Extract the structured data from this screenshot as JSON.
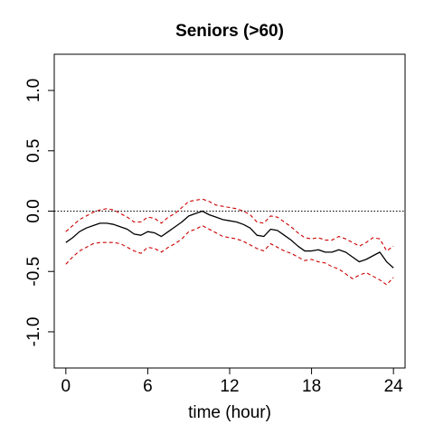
{
  "chart_data": {
    "type": "line",
    "title": "Seniors (>60)",
    "xlabel": "time (hour)",
    "ylabel": "",
    "xlim": [
      -0.85,
      24.85
    ],
    "ylim": [
      -1.3,
      1.3
    ],
    "xticks": [
      0,
      6,
      12,
      18,
      24
    ],
    "xtick_labels": [
      "0",
      "6",
      "12",
      "18",
      "24"
    ],
    "yticks": [
      -1.0,
      -0.5,
      0.0,
      0.5,
      1.0
    ],
    "ytick_labels": [
      "-1.0",
      "-0.5",
      "0.0",
      "0.5",
      "1.0"
    ],
    "reference_line": {
      "y": 0.0,
      "style": "dotted",
      "color": "#000000"
    },
    "grid": false,
    "legend": "none",
    "series": [
      {
        "role": "estimate",
        "color": "#000000",
        "style": "solid",
        "x": [
          0,
          0.5,
          1,
          1.5,
          2,
          2.5,
          3,
          3.5,
          4,
          4.5,
          5,
          5.5,
          6,
          6.5,
          7,
          7.5,
          8,
          8.5,
          9,
          9.5,
          10,
          10.5,
          11,
          11.5,
          12,
          12.5,
          13,
          13.5,
          14,
          14.5,
          15,
          15.5,
          16,
          16.5,
          17,
          17.5,
          18,
          18.5,
          19,
          19.5,
          20,
          20.5,
          21,
          21.5,
          22,
          22.5,
          23,
          23.5,
          24
        ],
        "y": [
          -0.26,
          -0.22,
          -0.17,
          -0.14,
          -0.12,
          -0.1,
          -0.1,
          -0.11,
          -0.13,
          -0.15,
          -0.19,
          -0.2,
          -0.17,
          -0.18,
          -0.21,
          -0.17,
          -0.13,
          -0.09,
          -0.04,
          -0.02,
          0.0,
          -0.03,
          -0.05,
          -0.07,
          -0.08,
          -0.09,
          -0.11,
          -0.14,
          -0.2,
          -0.21,
          -0.15,
          -0.16,
          -0.2,
          -0.24,
          -0.29,
          -0.33,
          -0.33,
          -0.32,
          -0.34,
          -0.34,
          -0.32,
          -0.34,
          -0.38,
          -0.42,
          -0.4,
          -0.37,
          -0.34,
          -0.42,
          -0.47
        ]
      },
      {
        "role": "upper-bound",
        "color": "#cc0000",
        "style": "dashed",
        "x": [
          0,
          0.5,
          1,
          1.5,
          2,
          2.5,
          3,
          3.5,
          4,
          4.5,
          5,
          5.5,
          6,
          6.5,
          7,
          7.5,
          8,
          8.5,
          9,
          9.5,
          10,
          10.5,
          11,
          11.5,
          12,
          12.5,
          13,
          13.5,
          14,
          14.5,
          15,
          15.5,
          16,
          16.5,
          17,
          17.5,
          18,
          18.5,
          19,
          19.5,
          20,
          20.5,
          21,
          21.5,
          22,
          22.5,
          23,
          23.5,
          24
        ],
        "y": [
          -0.17,
          -0.12,
          -0.07,
          -0.04,
          -0.01,
          0.01,
          0.02,
          0.01,
          -0.02,
          -0.05,
          -0.09,
          -0.09,
          -0.05,
          -0.06,
          -0.1,
          -0.05,
          -0.02,
          0.03,
          0.08,
          0.09,
          0.1,
          0.08,
          0.05,
          0.04,
          0.03,
          0.02,
          0.0,
          -0.03,
          -0.09,
          -0.1,
          -0.04,
          -0.05,
          -0.09,
          -0.13,
          -0.18,
          -0.22,
          -0.23,
          -0.22,
          -0.24,
          -0.24,
          -0.21,
          -0.23,
          -0.26,
          -0.29,
          -0.26,
          -0.22,
          -0.23,
          -0.33,
          -0.29
        ]
      },
      {
        "role": "lower-bound",
        "color": "#cc0000",
        "style": "dashed",
        "x": [
          0,
          0.5,
          1,
          1.5,
          2,
          2.5,
          3,
          3.5,
          4,
          4.5,
          5,
          5.5,
          6,
          6.5,
          7,
          7.5,
          8,
          8.5,
          9,
          9.5,
          10,
          10.5,
          11,
          11.5,
          12,
          12.5,
          13,
          13.5,
          14,
          14.5,
          15,
          15.5,
          16,
          16.5,
          17,
          17.5,
          18,
          18.5,
          19,
          19.5,
          20,
          20.5,
          21,
          21.5,
          22,
          22.5,
          23,
          23.5,
          24
        ],
        "y": [
          -0.44,
          -0.38,
          -0.33,
          -0.3,
          -0.27,
          -0.26,
          -0.26,
          -0.26,
          -0.27,
          -0.3,
          -0.33,
          -0.35,
          -0.3,
          -0.31,
          -0.34,
          -0.3,
          -0.27,
          -0.23,
          -0.17,
          -0.15,
          -0.12,
          -0.15,
          -0.18,
          -0.21,
          -0.22,
          -0.23,
          -0.25,
          -0.28,
          -0.31,
          -0.33,
          -0.27,
          -0.3,
          -0.33,
          -0.35,
          -0.38,
          -0.41,
          -0.4,
          -0.42,
          -0.43,
          -0.46,
          -0.48,
          -0.52,
          -0.56,
          -0.53,
          -0.51,
          -0.54,
          -0.57,
          -0.61,
          -0.55
        ]
      }
    ]
  }
}
